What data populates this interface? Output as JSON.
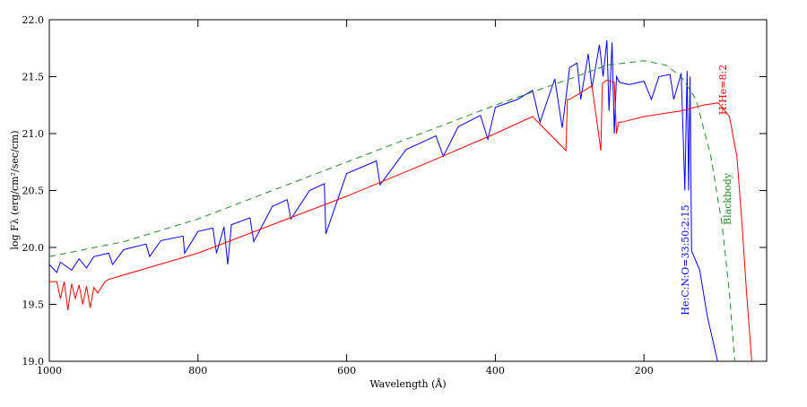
{
  "chart_data": {
    "type": "line",
    "xlabel": "Wavelength (Å)",
    "ylabel": "log Fλ (erg/cm²/sec/cm)",
    "xlim": [
      1000,
      35
    ],
    "xticks": [
      1000,
      800,
      600,
      400,
      200
    ],
    "ylim": [
      19,
      22
    ],
    "yticks": [
      {
        "value": 19,
        "label": "19.0"
      },
      19.5,
      {
        "value": 20,
        "label": "20.0"
      },
      20.5,
      {
        "value": 21,
        "label": "21.0"
      },
      21.5,
      {
        "value": 22,
        "label": "22.0"
      }
    ],
    "series": [
      {
        "name": "He:C:N:O=33:50:2:15",
        "color": "#0000ff",
        "linestyle": "solid",
        "x": [
          1000,
          990,
          985,
          970,
          960,
          950,
          940,
          920,
          915,
          900,
          870,
          865,
          850,
          820,
          818,
          800,
          780,
          775,
          765,
          760,
          755,
          730,
          725,
          700,
          680,
          675,
          650,
          630,
          628,
          600,
          560,
          555,
          520,
          500,
          480,
          470,
          450,
          420,
          410,
          400,
          370,
          350,
          340,
          320,
          310,
          300,
          290,
          285,
          275,
          270,
          260,
          255,
          250,
          247,
          243,
          240,
          237,
          233,
          220,
          200,
          190,
          180,
          165,
          160,
          150,
          145,
          142,
          140,
          138,
          136,
          125,
          115,
          101
        ],
        "values": [
          19.85,
          19.78,
          19.87,
          19.8,
          19.9,
          19.82,
          19.92,
          19.95,
          19.85,
          19.98,
          20.03,
          19.92,
          20.06,
          20.1,
          19.95,
          20.14,
          20.17,
          19.95,
          20.18,
          19.85,
          20.2,
          20.26,
          20.05,
          20.36,
          20.42,
          20.25,
          20.5,
          20.56,
          20.12,
          20.65,
          20.76,
          20.55,
          20.86,
          20.92,
          20.98,
          20.8,
          21.06,
          21.16,
          20.95,
          21.23,
          21.3,
          21.38,
          21.1,
          21.48,
          21.05,
          21.58,
          21.62,
          21.3,
          21.7,
          21.4,
          21.78,
          21.5,
          21.82,
          21.2,
          21.8,
          21.0,
          21.5,
          21.45,
          21.43,
          21.46,
          21.3,
          21.5,
          21.52,
          21.3,
          21.53,
          20.5,
          21.55,
          20.5,
          21.5,
          19.97,
          19.8,
          19.4,
          19.0
        ]
      },
      {
        "name": "H:He=8:2",
        "color": "#ff0000",
        "linestyle": "solid",
        "x": [
          1000,
          990,
          985,
          980,
          975,
          970,
          965,
          960,
          955,
          950,
          945,
          940,
          935,
          925,
          920,
          800,
          700,
          600,
          500,
          400,
          350,
          305,
          303,
          300,
          270,
          258,
          256,
          250,
          240,
          237,
          234,
          230,
          200,
          150,
          120,
          100,
          85,
          75,
          68,
          62,
          55
        ],
        "values": [
          19.7,
          19.7,
          19.55,
          19.7,
          19.45,
          19.68,
          19.55,
          19.67,
          19.5,
          19.66,
          19.47,
          19.65,
          19.6,
          19.7,
          19.72,
          19.95,
          20.2,
          20.45,
          20.72,
          21.0,
          21.15,
          20.85,
          21.3,
          21.3,
          21.42,
          20.85,
          21.44,
          21.47,
          21.45,
          21.0,
          21.1,
          21.1,
          21.15,
          21.2,
          21.25,
          21.27,
          21.15,
          20.8,
          20.2,
          19.6,
          19.0
        ]
      },
      {
        "name": "Blackbody",
        "color": "#228b22",
        "linestyle": "dashed",
        "x": [
          1000,
          900,
          800,
          700,
          600,
          500,
          400,
          300,
          250,
          200,
          170,
          150,
          130,
          110,
          95,
          85,
          78
        ],
        "values": [
          19.92,
          20.05,
          20.25,
          20.5,
          20.75,
          21.0,
          21.25,
          21.48,
          21.6,
          21.64,
          21.6,
          21.5,
          21.3,
          20.8,
          20.2,
          19.6,
          19.0
        ]
      }
    ]
  }
}
